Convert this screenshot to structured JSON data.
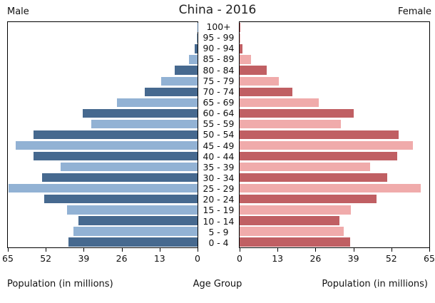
{
  "header": {
    "title": "China - 2016",
    "left_label": "Male",
    "right_label": "Female"
  },
  "axis": {
    "left_caption": "Population (in millions)",
    "center_caption": "Age Group",
    "right_caption": "Population (in millions)",
    "male_ticks": [
      65,
      52,
      39,
      26,
      13,
      0
    ],
    "female_ticks": [
      0,
      13,
      26,
      39,
      52,
      65
    ],
    "max": 65
  },
  "colors": {
    "male_dark": "#46698f",
    "male_light": "#92b2d4",
    "female_dark": "#c05f63",
    "female_light": "#f0abab",
    "border": "#000000"
  },
  "chart_data": {
    "type": "bar",
    "subtype": "population-pyramid",
    "title": "China - 2016",
    "order": "top-to-bottom",
    "categories": [
      "100+",
      "95 - 99",
      "90 - 94",
      "85 - 89",
      "80 - 84",
      "75 - 79",
      "70 - 74",
      "65 - 69",
      "60 - 64",
      "55 - 59",
      "50 - 54",
      "45 - 49",
      "40 - 44",
      "35 - 39",
      "30 - 34",
      "25 - 29",
      "20 - 24",
      "15 - 19",
      "10 - 14",
      "5 - 9",
      "0 - 4"
    ],
    "series": [
      {
        "name": "Male",
        "values": [
          0.1,
          0.2,
          1.0,
          3.0,
          7.8,
          12.4,
          18.0,
          27.7,
          39.4,
          36.3,
          56.3,
          62.3,
          56.1,
          46.8,
          53.3,
          64.8,
          52.5,
          44.6,
          40.8,
          42.5,
          44.2
        ]
      },
      {
        "name": "Female",
        "values": [
          0.1,
          0.3,
          1.0,
          4.0,
          9.3,
          13.5,
          18.2,
          27.2,
          39.0,
          34.8,
          54.5,
          59.3,
          53.9,
          44.6,
          50.7,
          62.0,
          46.9,
          38.0,
          34.1,
          35.6,
          37.8
        ]
      }
    ],
    "xlabel": "Population (in millions)",
    "ylabel": "Age Group",
    "xlim": [
      0,
      65
    ],
    "tick_step": 13,
    "grid": false,
    "legend_position": "none",
    "bar_color_rule": "alternating dark/light per row, bottom row (0 - 4) dark"
  }
}
